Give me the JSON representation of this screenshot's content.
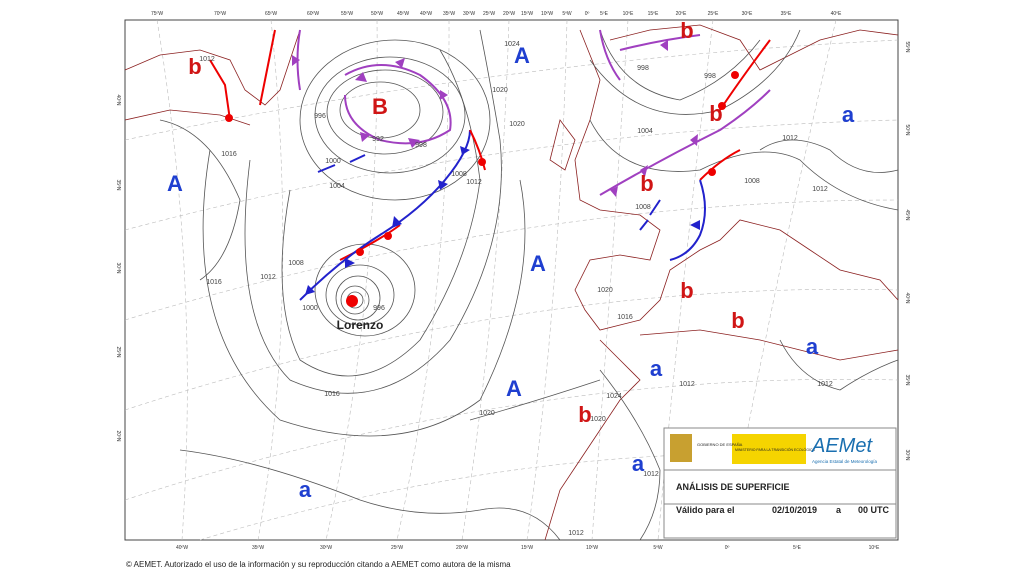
{
  "map": {
    "top_lon_labels": [
      "75ºW",
      "70ºW",
      "65ºW",
      "60ºW",
      "55ºW",
      "50ºW",
      "45ºW",
      "40ºW",
      "35ºW",
      "30ºW",
      "25ºW",
      "20ºW",
      "15ºW",
      "10ºW",
      "5ºW",
      "0º",
      "5ºE",
      "10ºE",
      "15ºE",
      "20ºE",
      "25ºE",
      "30ºE",
      "35ºE",
      "40ºE"
    ],
    "bottom_lon_labels": [
      "40ºW",
      "35ºW",
      "30ºW",
      "25ºW",
      "20ºW",
      "15ºW",
      "10ºW",
      "5ºW",
      "0º",
      "5ºE",
      "10ºE"
    ],
    "left_lat_labels": [
      "40ºN",
      "35ºN",
      "30ºN",
      "25ºN",
      "20ºN"
    ],
    "right_lat_labels": [
      "55ºN",
      "50ºN",
      "45ºN",
      "40ºN",
      "35ºN",
      "30ºN"
    ],
    "systems": [
      "b",
      "B",
      "A",
      "b",
      "a",
      "A",
      "b",
      "b",
      "A",
      "b",
      "b",
      "a",
      "a",
      "A",
      "b",
      "a",
      "a"
    ],
    "storm_name": "Lorenzo",
    "isobar_labels": [
      "1012",
      "996",
      "992",
      "998",
      "1000",
      "1004",
      "1008",
      "1012",
      "1016",
      "1020",
      "1020",
      "1024",
      "998",
      "998",
      "1004",
      "1012",
      "1012",
      "1008",
      "1008",
      "1008",
      "1012",
      "1016",
      "1000",
      "996",
      "1020",
      "1016",
      "1012",
      "1012",
      "1016",
      "1020",
      "1024",
      "1020",
      "1012",
      "1012"
    ]
  },
  "legend": {
    "gov_1": "GOBIERNO DE ESPAÑA",
    "gov_2": "MINISTERIO PARA LA TRANSICIÓN ECOLÓGICA",
    "brand": "AEMet",
    "brand_sub": "Agencia Estatal de Meteorología",
    "title": "ANÁLISIS DE SUPERFICIE",
    "valid_label": "Válido para el",
    "date": "02/10/2019",
    "connector": "a",
    "time": "00 UTC"
  },
  "footer": "© AEMET. Autorizado el uso de la información y su reproducción citando a AEMET como autora de la misma"
}
